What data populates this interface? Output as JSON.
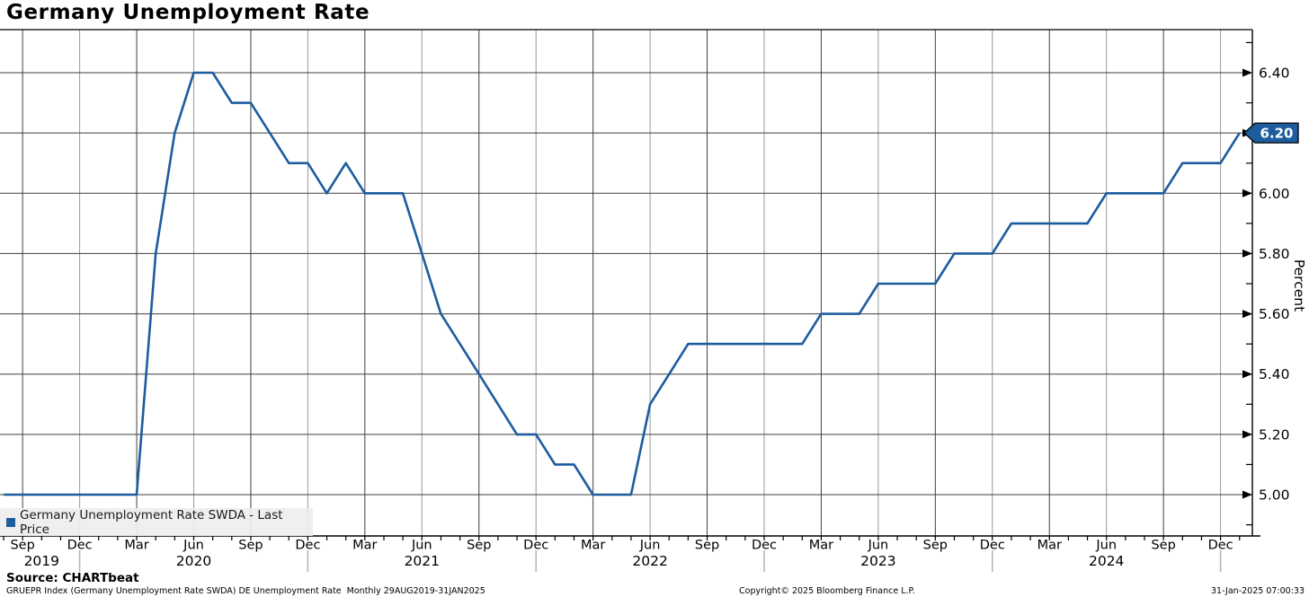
{
  "header": {
    "title": "Germany Unemployment Rate"
  },
  "legend": {
    "marker_color": "#1d5c9e",
    "label": "Germany Unemployment Rate SWDA - Last Price"
  },
  "footer": {
    "source": "Source: CHARTbeat",
    "description": "GRUEPR Index (Germany Unemployment Rate SWDA) DE Unemployment Rate  Monthly 29AUG2019-31JAN2025",
    "copyright": "Copyright© 2025 Bloomberg Finance L.P.",
    "timestamp": "31-Jan-2025 07:00:33"
  },
  "chart_data": {
    "type": "line",
    "title": "Germany Unemployment Rate",
    "series_name": "Germany Unemployment Rate SWDA - Last Price",
    "ylabel": "Percent",
    "line_color": "#1d5c9e",
    "grid": true,
    "legend_position": "bottom-left",
    "x_range": "29AUG2019-31JAN2025",
    "frequency": "Monthly",
    "last_price": 6.2,
    "last_price_label": "6.20",
    "ylim": [
      4.86,
      6.55
    ],
    "y_ticks": [
      5.0,
      5.2,
      5.4,
      5.6,
      5.8,
      6.0,
      6.2,
      6.4
    ],
    "y_minor_ticks": [
      4.9,
      5.1,
      5.3,
      5.5,
      5.7,
      5.9,
      6.1,
      6.3,
      6.5
    ],
    "categories": [
      "Aug 2019",
      "Sep 2019",
      "Oct 2019",
      "Nov 2019",
      "Dec 2019",
      "Jan 2020",
      "Feb 2020",
      "Mar 2020",
      "Apr 2020",
      "May 2020",
      "Jun 2020",
      "Jul 2020",
      "Aug 2020",
      "Sep 2020",
      "Oct 2020",
      "Nov 2020",
      "Dec 2020",
      "Jan 2021",
      "Feb 2021",
      "Mar 2021",
      "Apr 2021",
      "May 2021",
      "Jun 2021",
      "Jul 2021",
      "Aug 2021",
      "Sep 2021",
      "Oct 2021",
      "Nov 2021",
      "Dec 2021",
      "Jan 2022",
      "Feb 2022",
      "Mar 2022",
      "Apr 2022",
      "May 2022",
      "Jun 2022",
      "Jul 2022",
      "Aug 2022",
      "Sep 2022",
      "Oct 2022",
      "Nov 2022",
      "Dec 2022",
      "Jan 2023",
      "Feb 2023",
      "Mar 2023",
      "Apr 2023",
      "May 2023",
      "Jun 2023",
      "Jul 2023",
      "Aug 2023",
      "Sep 2023",
      "Oct 2023",
      "Nov 2023",
      "Dec 2023",
      "Jan 2024",
      "Feb 2024",
      "Mar 2024",
      "Apr 2024",
      "May 2024",
      "Jun 2024",
      "Jul 2024",
      "Aug 2024",
      "Sep 2024",
      "Oct 2024",
      "Nov 2024",
      "Dec 2024",
      "Jan 2025"
    ],
    "values": [
      5.0,
      5.0,
      5.0,
      5.0,
      5.0,
      5.0,
      5.0,
      5.0,
      5.8,
      6.2,
      6.4,
      6.4,
      6.3,
      6.3,
      6.2,
      6.1,
      6.1,
      6.0,
      6.1,
      6.0,
      6.0,
      6.0,
      5.8,
      5.6,
      5.5,
      5.4,
      5.3,
      5.2,
      5.2,
      5.1,
      5.1,
      5.0,
      5.0,
      5.0,
      5.3,
      5.4,
      5.5,
      5.5,
      5.5,
      5.5,
      5.5,
      5.5,
      5.5,
      5.6,
      5.6,
      5.6,
      5.7,
      5.7,
      5.7,
      5.7,
      5.8,
      5.8,
      5.8,
      5.9,
      5.9,
      5.9,
      5.9,
      5.9,
      6.0,
      6.0,
      6.0,
      6.0,
      6.1,
      6.1,
      6.1,
      6.2
    ],
    "x_ticks": [
      {
        "i": 1,
        "label": "Sep"
      },
      {
        "i": 4,
        "label": "Dec"
      },
      {
        "i": 7,
        "label": "Mar"
      },
      {
        "i": 10,
        "label": "Jun"
      },
      {
        "i": 13,
        "label": "Sep"
      },
      {
        "i": 16,
        "label": "Dec"
      },
      {
        "i": 19,
        "label": "Mar"
      },
      {
        "i": 22,
        "label": "Jun"
      },
      {
        "i": 25,
        "label": "Sep"
      },
      {
        "i": 28,
        "label": "Dec"
      },
      {
        "i": 31,
        "label": "Mar"
      },
      {
        "i": 34,
        "label": "Jun"
      },
      {
        "i": 37,
        "label": "Sep"
      },
      {
        "i": 40,
        "label": "Dec"
      },
      {
        "i": 43,
        "label": "Mar"
      },
      {
        "i": 46,
        "label": "Jun"
      },
      {
        "i": 49,
        "label": "Sep"
      },
      {
        "i": 52,
        "label": "Dec"
      },
      {
        "i": 55,
        "label": "Mar"
      },
      {
        "i": 58,
        "label": "Jun"
      },
      {
        "i": 61,
        "label": "Sep"
      },
      {
        "i": 64,
        "label": "Dec"
      }
    ],
    "year_labels": [
      {
        "i": 2,
        "label": "2019"
      },
      {
        "i": 10,
        "label": "2020"
      },
      {
        "i": 22,
        "label": "2021"
      },
      {
        "i": 34,
        "label": "2022"
      },
      {
        "i": 46,
        "label": "2023"
      },
      {
        "i": 58,
        "label": "2024"
      }
    ],
    "year_separators": [
      4,
      16,
      28,
      40,
      52,
      64
    ]
  }
}
